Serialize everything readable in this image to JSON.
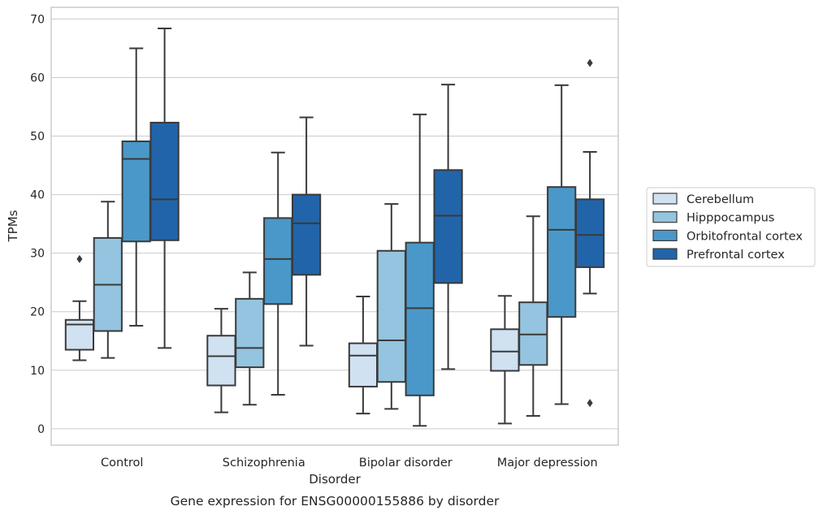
{
  "chart_data": {
    "type": "box",
    "title": "Gene expression for ENSG00000155886 by disorder",
    "xlabel": "Disorder",
    "ylabel": "TPMs",
    "ylim": [
      -2.8,
      72
    ],
    "yticks": [
      0,
      10,
      20,
      30,
      40,
      50,
      60,
      70
    ],
    "categories": [
      "Control",
      "Schizophrenia",
      "Bipolar disorder",
      "Major depression"
    ],
    "grid": true,
    "legend_position": "right",
    "series": [
      {
        "name": "Cerebellum",
        "color": "#d0e1f2",
        "boxes": [
          {
            "whislo": 11.7,
            "q1": 13.5,
            "med": 17.8,
            "q3": 18.6,
            "whishi": 21.8,
            "fliers": [
              29.0
            ]
          },
          {
            "whislo": 2.8,
            "q1": 7.4,
            "med": 12.4,
            "q3": 15.9,
            "whishi": 20.5,
            "fliers": []
          },
          {
            "whislo": 2.6,
            "q1": 7.2,
            "med": 12.5,
            "q3": 14.6,
            "whishi": 22.6,
            "fliers": []
          },
          {
            "whislo": 0.9,
            "q1": 9.9,
            "med": 13.2,
            "q3": 17.0,
            "whishi": 22.7,
            "fliers": []
          }
        ]
      },
      {
        "name": "Hipppocampus",
        "color": "#94c4df",
        "boxes": [
          {
            "whislo": 12.1,
            "q1": 16.7,
            "med": 24.6,
            "q3": 32.6,
            "whishi": 38.8,
            "fliers": []
          },
          {
            "whislo": 4.1,
            "q1": 10.5,
            "med": 13.8,
            "q3": 22.2,
            "whishi": 26.7,
            "fliers": []
          },
          {
            "whislo": 3.4,
            "q1": 8.0,
            "med": 15.1,
            "q3": 30.4,
            "whishi": 38.4,
            "fliers": []
          },
          {
            "whislo": 2.2,
            "q1": 10.9,
            "med": 16.1,
            "q3": 21.6,
            "whishi": 36.3,
            "fliers": []
          }
        ]
      },
      {
        "name": "Orbitofrontal cortex",
        "color": "#4a98c9",
        "boxes": [
          {
            "whislo": 17.6,
            "q1": 32.0,
            "med": 46.1,
            "q3": 49.1,
            "whishi": 65.0,
            "fliers": []
          },
          {
            "whislo": 5.8,
            "q1": 21.3,
            "med": 29.0,
            "q3": 36.0,
            "whishi": 47.2,
            "fliers": []
          },
          {
            "whislo": 0.5,
            "q1": 5.7,
            "med": 20.6,
            "q3": 31.8,
            "whishi": 53.7,
            "fliers": []
          },
          {
            "whislo": 4.2,
            "q1": 19.1,
            "med": 34.0,
            "q3": 41.3,
            "whishi": 58.7,
            "fliers": []
          }
        ]
      },
      {
        "name": "Prefrontal cortex",
        "color": "#2264a9",
        "boxes": [
          {
            "whislo": 13.8,
            "q1": 32.2,
            "med": 39.2,
            "q3": 52.3,
            "whishi": 68.4,
            "fliers": []
          },
          {
            "whislo": 14.2,
            "q1": 26.3,
            "med": 35.1,
            "q3": 40.0,
            "whishi": 53.2,
            "fliers": []
          },
          {
            "whislo": 10.2,
            "q1": 24.9,
            "med": 36.4,
            "q3": 44.2,
            "whishi": 58.8,
            "fliers": []
          },
          {
            "whislo": 23.1,
            "q1": 27.6,
            "med": 33.1,
            "q3": 39.2,
            "whishi": 47.3,
            "fliers": [
              62.5,
              4.4
            ]
          }
        ]
      }
    ]
  }
}
